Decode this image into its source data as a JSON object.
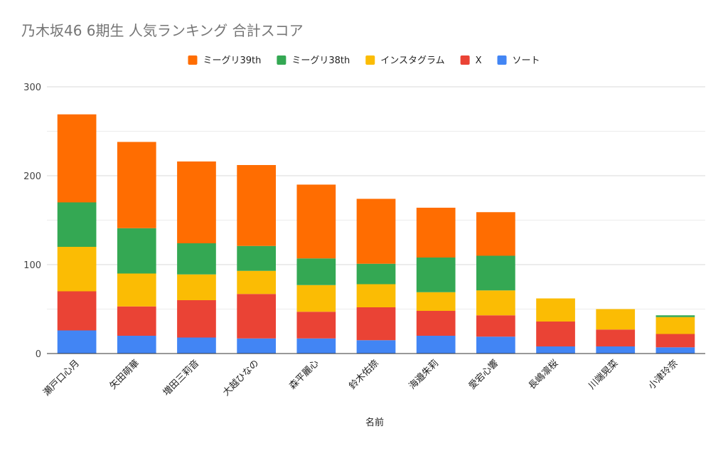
{
  "chart_data": {
    "type": "bar",
    "stacked": true,
    "title": "乃木坂46 6期生 人気ランキング 合計スコア",
    "xlabel": "名前",
    "ylabel": "",
    "ylim": [
      0,
      300
    ],
    "yticks": [
      0,
      100,
      200,
      300
    ],
    "grid": true,
    "legend_position": "top",
    "categories": [
      "瀬戸口心月",
      "矢田萌華",
      "増田三莉音",
      "大越ひなの",
      "森平麗心",
      "鈴木佑捺",
      "海邉朱莉",
      "愛宕心響",
      "長嶋凛桜",
      "川端晃菜",
      "小津玲奈"
    ],
    "series": [
      {
        "name": "ソート",
        "color": "#4285f4",
        "values": [
          26,
          20,
          18,
          17,
          17,
          15,
          20,
          19,
          8,
          8,
          7
        ]
      },
      {
        "name": "X",
        "color": "#ea4335",
        "values": [
          44,
          33,
          42,
          50,
          30,
          37,
          28,
          24,
          28,
          19,
          15
        ]
      },
      {
        "name": "インスタグラム",
        "color": "#fbbc04",
        "values": [
          50,
          37,
          29,
          26,
          30,
          26,
          21,
          28,
          26,
          23,
          19
        ]
      },
      {
        "name": "ミーグリ38th",
        "color": "#34a853",
        "values": [
          50,
          51,
          35,
          28,
          30,
          23,
          39,
          39,
          0,
          0,
          2
        ]
      },
      {
        "name": "ミーグリ39th",
        "color": "#ff6d01",
        "values": [
          99,
          97,
          92,
          91,
          83,
          73,
          56,
          49,
          0,
          0,
          0
        ]
      }
    ],
    "legend_order": [
      "ミーグリ39th",
      "ミーグリ38th",
      "インスタグラム",
      "X",
      "ソート"
    ]
  }
}
